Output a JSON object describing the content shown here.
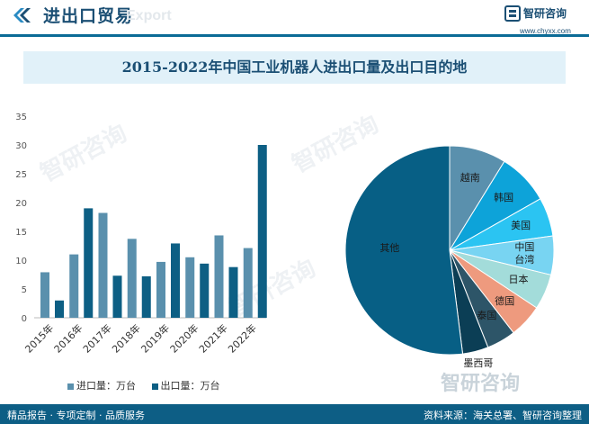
{
  "header": {
    "title": "进出口贸易",
    "watermark": "Export",
    "logo_text": "智研咨询",
    "logo_url": "www.chyxx.com"
  },
  "chart_title": "2015-2022年中国工业机器人进出口量及出口目的地",
  "watermarks": [
    "智研咨询",
    "智研咨询",
    "智研咨询"
  ],
  "chart_data": [
    {
      "type": "bar",
      "categories": [
        "2015年",
        "2016年",
        "2017年",
        "2018年",
        "2019年",
        "2020年",
        "2021年",
        "2022年"
      ],
      "series": [
        {
          "name": "进口量：万台",
          "color": "#5a90ad",
          "values": [
            7.9,
            11.0,
            18.2,
            13.7,
            9.7,
            10.5,
            14.3,
            12.1
          ]
        },
        {
          "name": "出口量：万台",
          "color": "#0d5f84",
          "values": [
            3.0,
            19.0,
            7.3,
            7.2,
            12.9,
            9.4,
            8.8,
            30.0
          ]
        }
      ],
      "ylim": [
        0,
        35
      ],
      "yticks": [
        0,
        5,
        10,
        15,
        20,
        25,
        30,
        35
      ],
      "legend_position": "bottom"
    },
    {
      "type": "pie",
      "start_angle_deg": 0,
      "slices": [
        {
          "label": "越南",
          "value": 8.8,
          "color": "#5a90ad"
        },
        {
          "label": "韩国",
          "value": 8.0,
          "color": "#0da3d9"
        },
        {
          "label": "美国",
          "value": 6.0,
          "color": "#2bc4f2"
        },
        {
          "label": "中国台湾",
          "value": 6.0,
          "color": "#78d4f2"
        },
        {
          "label": "日本",
          "value": 5.5,
          "color": "#a3dcda"
        },
        {
          "label": "德国",
          "value": 5.2,
          "color": "#ee9a7e"
        },
        {
          "label": "泰国",
          "value": 4.5,
          "color": "#2d5568"
        },
        {
          "label": "墨西哥",
          "value": 4.0,
          "color": "#0b3e55"
        },
        {
          "label": "其他",
          "value": 52.0,
          "color": "#075f85"
        }
      ]
    }
  ],
  "legend": {
    "import_label": "进口量：万台",
    "export_label": "出口量：万台"
  },
  "footer": {
    "left": "精品报告 · 专项定制 · 品质服务",
    "source": "资料来源：海关总署、智研咨询整理"
  },
  "source_watermark": "智研咨询"
}
